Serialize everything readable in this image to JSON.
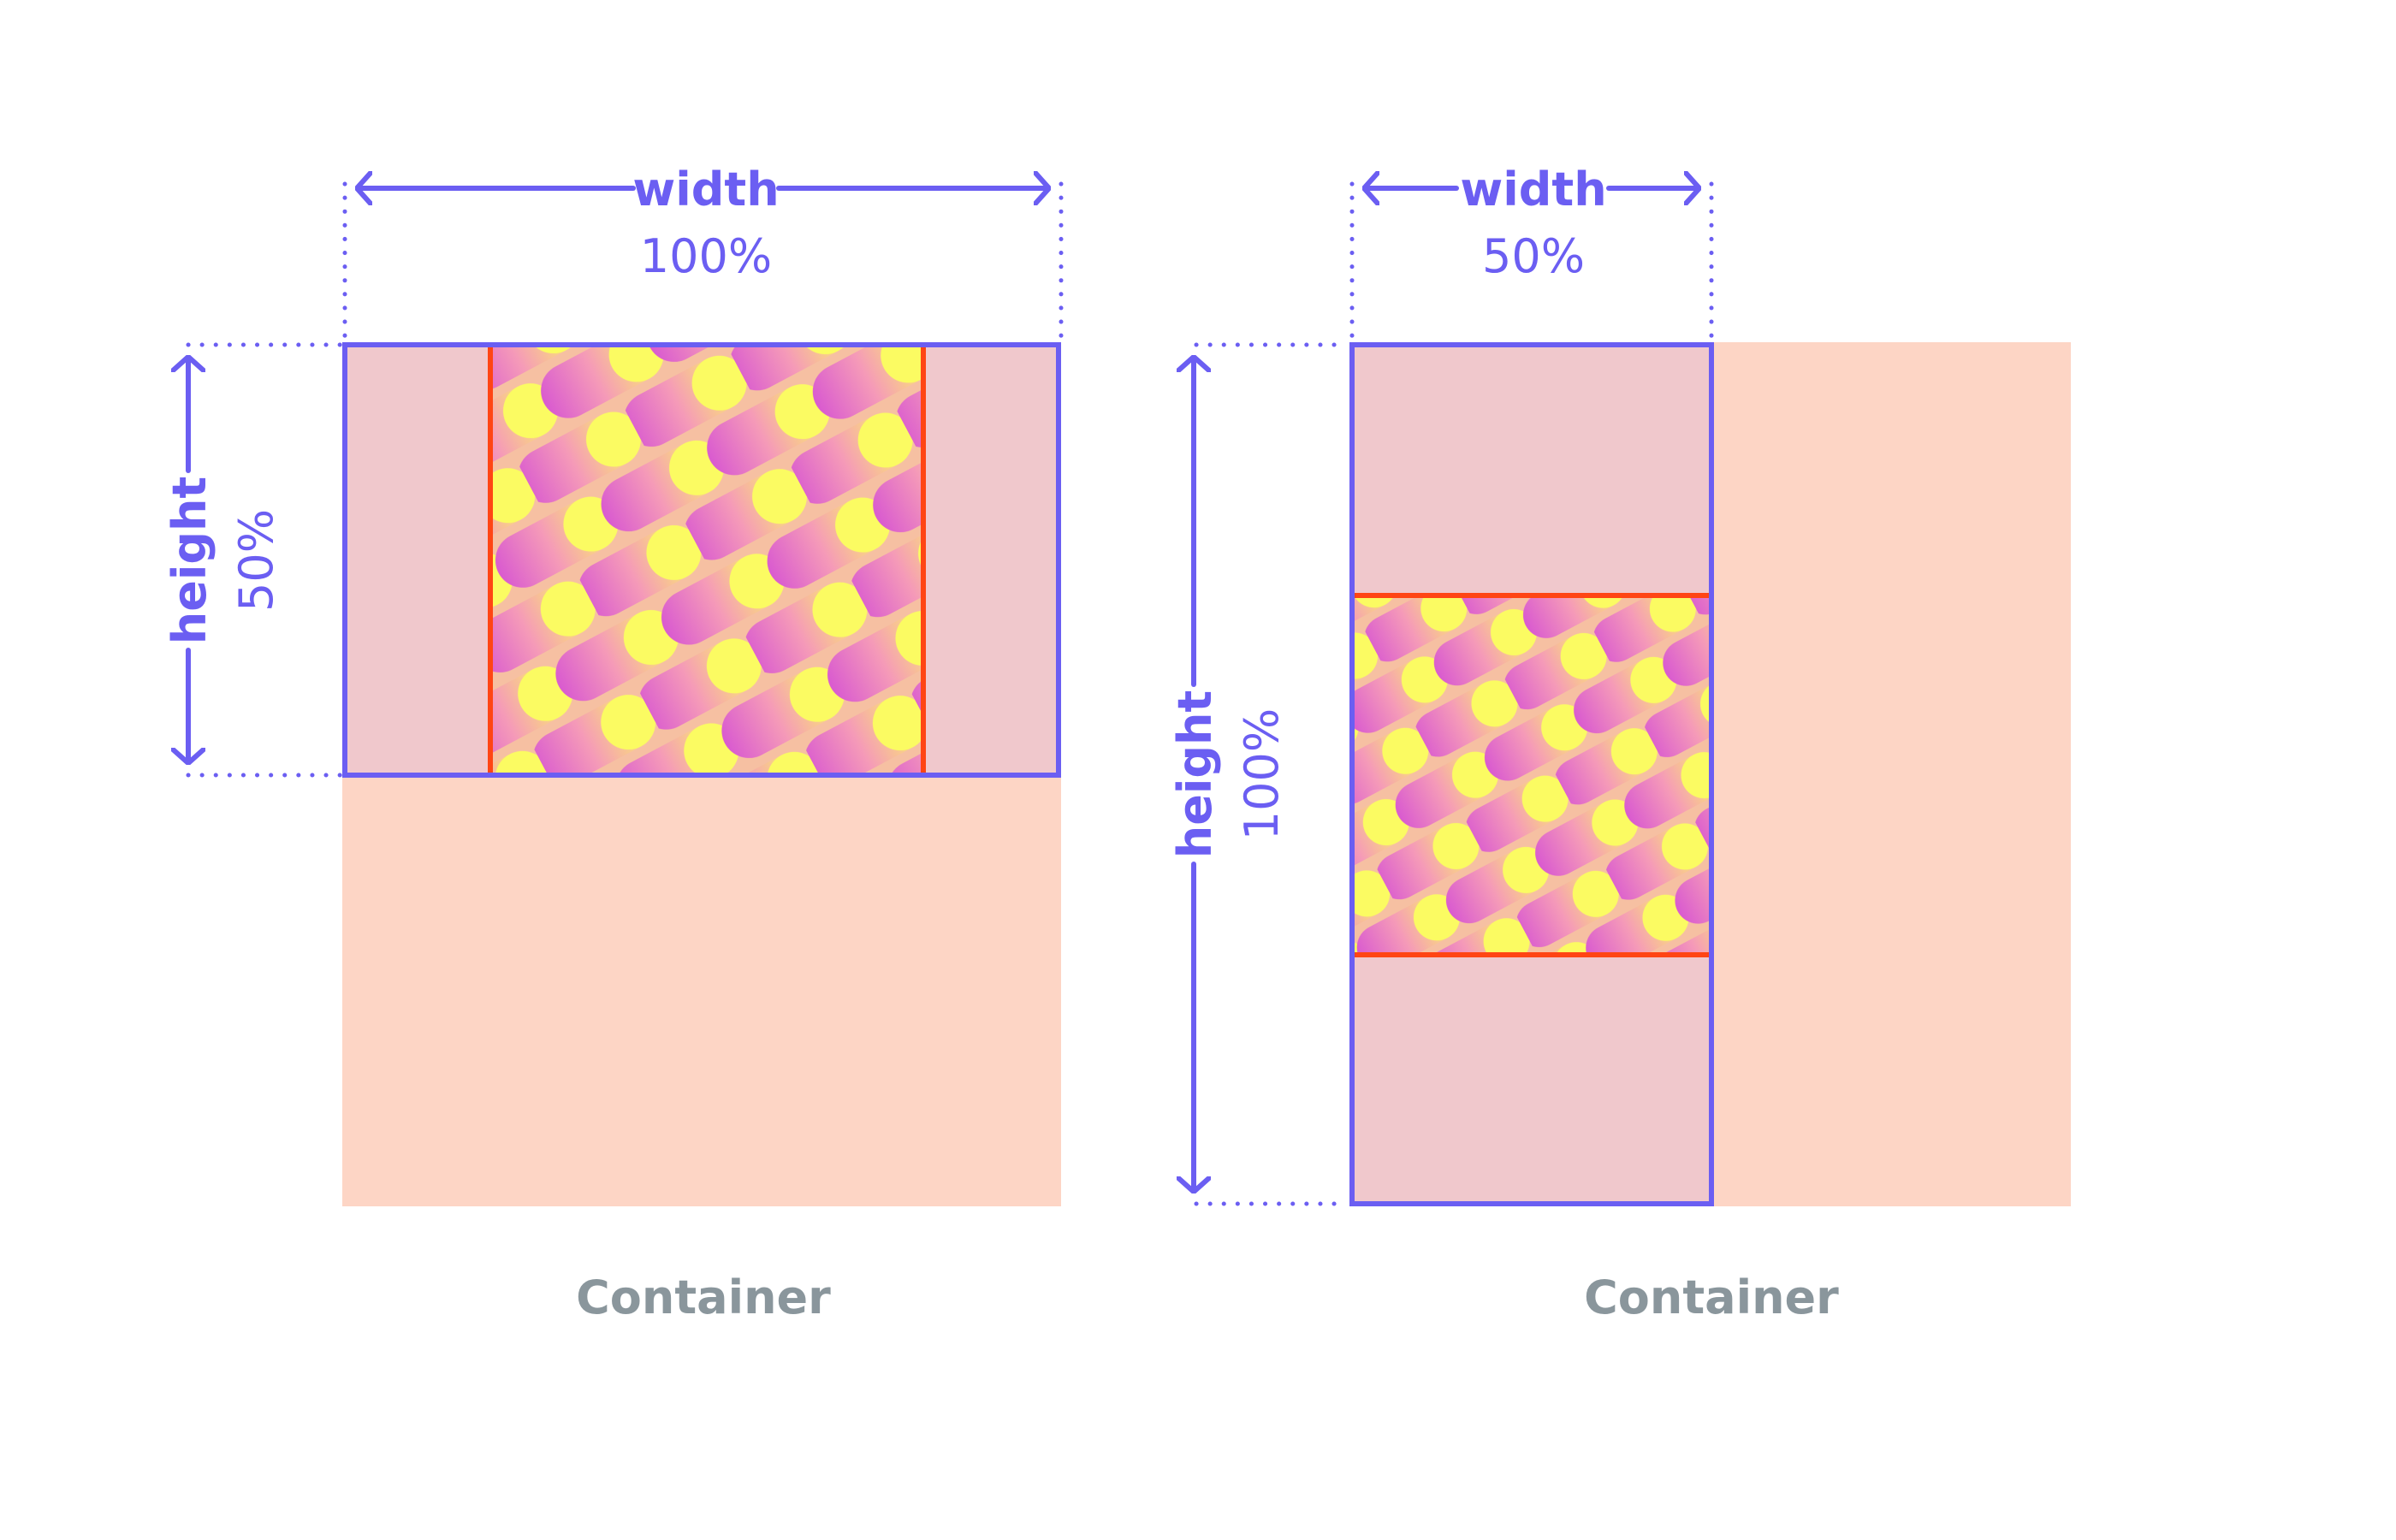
{
  "colors": {
    "container_fill": "#fdd5c5",
    "box_fill": "#f0c8cc",
    "outline_purple": "#6b5ef2",
    "image_border": "#ff4514",
    "caption_gray": "#8a969c",
    "background": "#ffffff",
    "image_yellow": "#fbfb62",
    "image_magenta": "#d95ad0"
  },
  "examples": [
    {
      "id": "width-100-height-50",
      "width_label": "width",
      "width_value": "100%",
      "height_label": "height",
      "height_value": "50%",
      "width_fraction": 1.0,
      "height_fraction": 0.5,
      "caption": "Container"
    },
    {
      "id": "width-50-height-100",
      "width_label": "width",
      "width_value": "50%",
      "height_label": "height",
      "height_value": "100%",
      "width_fraction": 0.5,
      "height_fraction": 1.0,
      "caption": "Container"
    }
  ],
  "image_fill": {
    "description_icon": "abstract-tentacle-pattern-icon"
  }
}
